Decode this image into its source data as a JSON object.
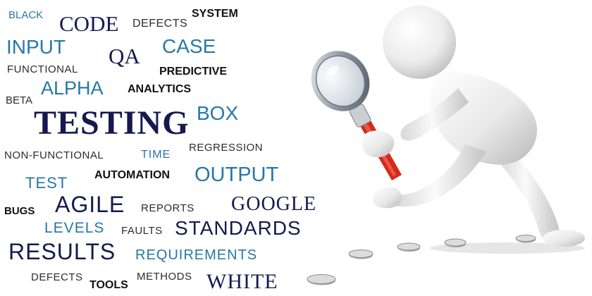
{
  "words": {
    "black": "BLACK",
    "code": "CODE",
    "defects_top": "DEFECTS",
    "system": "SYSTEM",
    "input": "INPUT",
    "qa": "QA",
    "case": "CASE",
    "functional": "FUNCTIONAL",
    "predictive": "PREDICTIVE",
    "beta": "BETA",
    "alpha": "ALPHA",
    "analytics": "ANALYTICS",
    "testing": "TESTING",
    "box": "BOX",
    "non_functional": "NON-FUNCTIONAL",
    "time": "TIME",
    "regression": "REGRESSION",
    "test": "TEST",
    "automation": "AUTOMATION",
    "output": "OUTPUT",
    "bugs": "BUGS",
    "agile": "AGILE",
    "reports": "REPORTS",
    "google": "GOOGLE",
    "levels": "LEVELS",
    "faults": "FAULTS",
    "standards": "STANDARDS",
    "results": "RESULTS",
    "requirements": "REQUIREMENTS",
    "defects_bottom": "DEFECTS",
    "tools": "TOOLS",
    "methods": "METHODS",
    "white": "WHITE"
  },
  "colors": {
    "navy": "#141a4f",
    "blue": "#2877a8",
    "dark": "#2c2c2c",
    "figure_body": "#eeeeee",
    "magnifier_handle": "#d42a1c",
    "magnifier_rim": "#9aa3ad"
  },
  "illustration": {
    "subject": "white 3d figure with magnifying glass inspecting coins",
    "icons": [
      "figure-icon",
      "magnifying-glass-icon",
      "coin-icon"
    ]
  }
}
